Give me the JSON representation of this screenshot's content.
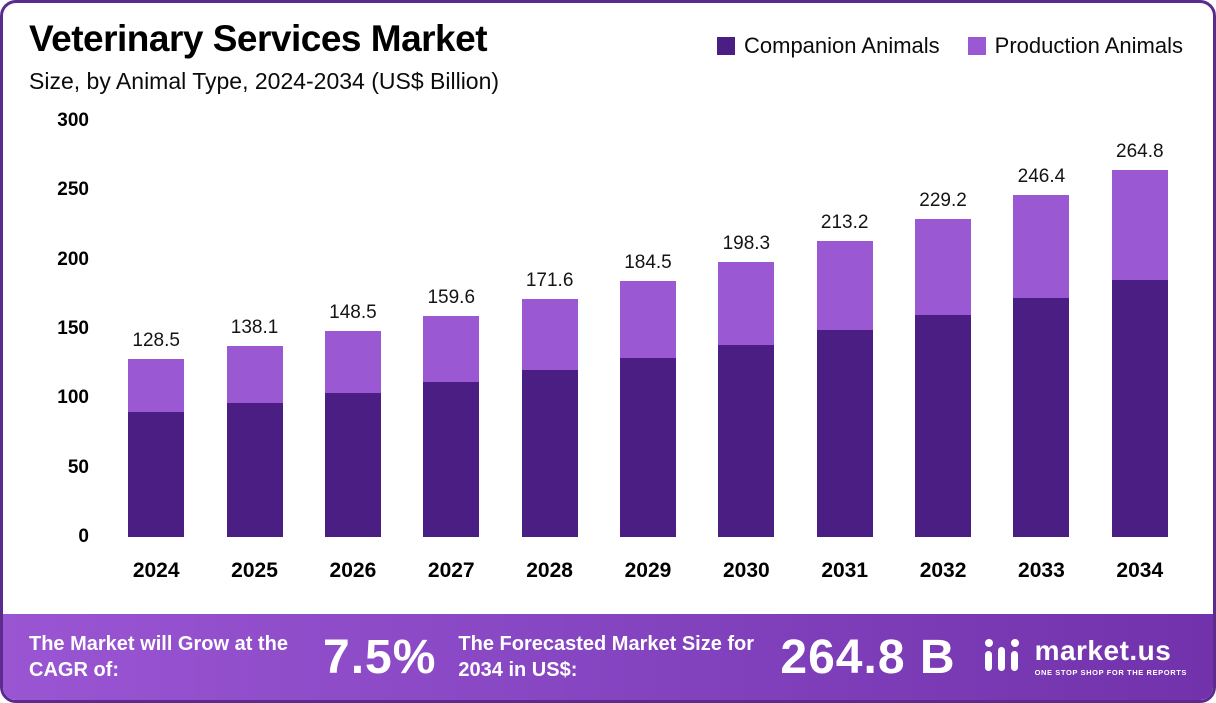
{
  "header": {
    "title": "Veterinary Services Market",
    "subtitle": "Size, by Animal Type, 2024-2034 (US$ Billion)"
  },
  "legend": [
    {
      "label": "Companion Animals",
      "color": "#4a1e82"
    },
    {
      "label": "Production Animals",
      "color": "#9a58d2"
    }
  ],
  "chart_data": {
    "type": "bar",
    "stacked": true,
    "title": "Veterinary Services Market Size, by Animal Type, 2024-2034 (US$ Billion)",
    "categories": [
      "2024",
      "2025",
      "2026",
      "2027",
      "2028",
      "2029",
      "2030",
      "2031",
      "2032",
      "2033",
      "2034"
    ],
    "series": [
      {
        "name": "Companion Animals",
        "color": "#4a1e82",
        "values": [
          89.9,
          96.7,
          104.0,
          111.7,
          120.1,
          129.2,
          138.8,
          149.2,
          160.4,
          172.5,
          185.4
        ]
      },
      {
        "name": "Production Animals",
        "color": "#9a58d2",
        "values": [
          38.6,
          41.4,
          44.5,
          47.9,
          51.5,
          55.3,
          59.5,
          64.0,
          68.8,
          73.9,
          79.4
        ]
      }
    ],
    "totals": [
      128.5,
      138.1,
      148.5,
      159.6,
      171.6,
      184.5,
      198.3,
      213.2,
      229.2,
      246.4,
      264.8
    ],
    "ylim": [
      0,
      300
    ],
    "yticks": [
      0,
      50,
      100,
      150,
      200,
      250,
      300
    ],
    "ylabel": "",
    "xlabel": "",
    "grid": false,
    "legend_position": "top-right"
  },
  "banner": {
    "cagr_label": "The Market will Grow at the CAGR of:",
    "cagr_value": "7.5%",
    "forecast_label": "The Forecasted Market Size for 2034 in US$:",
    "forecast_value": "264.8 B",
    "brand": "market.us",
    "brand_tagline": "ONE STOP SHOP FOR THE REPORTS"
  }
}
